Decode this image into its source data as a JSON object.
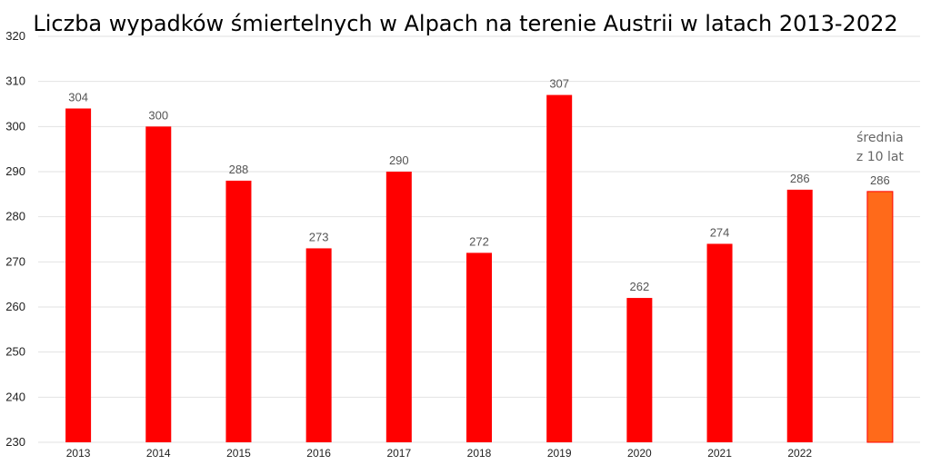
{
  "chart_data": {
    "type": "bar",
    "title": "Liczba wypadków śmiertelnych w Alpach na terenie Austrii w latach 2013-2022",
    "xlabel": "",
    "ylabel": "",
    "ylim": [
      230,
      320
    ],
    "ystep": 10,
    "grid": true,
    "legend": "none",
    "categories": [
      "2013",
      "2014",
      "2015",
      "2016",
      "2017",
      "2018",
      "2019",
      "2020",
      "2021",
      "2022",
      ""
    ],
    "values": [
      304,
      300,
      288,
      273,
      290,
      272,
      307,
      262,
      274,
      286,
      285.6
    ],
    "value_labels": [
      "304",
      "300",
      "288",
      "273",
      "290",
      "272",
      "307",
      "262",
      "274",
      "286",
      "286"
    ],
    "bar_color": "#ff0000",
    "highlight": {
      "index": 10,
      "color": "#ff6a1a",
      "note_lines": [
        "średnia",
        "z 10 lat"
      ]
    }
  }
}
